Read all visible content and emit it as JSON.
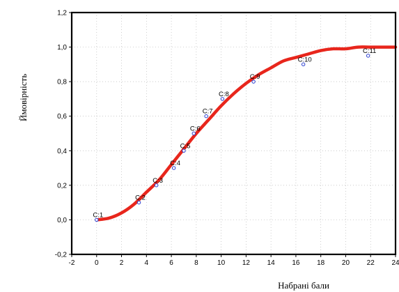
{
  "chart_data": {
    "type": "scatter",
    "title": "",
    "xlabel": "Набрані бали",
    "ylabel": "Ймовірність",
    "xlim": [
      -2,
      24
    ],
    "ylim": [
      -0.2,
      1.2
    ],
    "x_ticks": [
      "-2",
      "0",
      "2",
      "4",
      "6",
      "8",
      "10",
      "12",
      "14",
      "16",
      "18",
      "20",
      "22",
      "24"
    ],
    "y_ticks": [
      "-0,2",
      "0,0",
      "0,2",
      "0,4",
      "0,6",
      "0,8",
      "1,0",
      "1,2"
    ],
    "grid": true,
    "legend": "none",
    "series": [
      {
        "type": "scatter",
        "color": "#2b3fd0",
        "marker": "open-circle",
        "points": [
          {
            "label": "C:1",
            "x": 0.0,
            "y": 0.0
          },
          {
            "label": "C:2",
            "x": 3.4,
            "y": 0.1
          },
          {
            "label": "C:3",
            "x": 4.8,
            "y": 0.2
          },
          {
            "label": "C:4",
            "x": 6.2,
            "y": 0.3
          },
          {
            "label": "C:5",
            "x": 7.0,
            "y": 0.4
          },
          {
            "label": "C:6",
            "x": 7.8,
            "y": 0.5
          },
          {
            "label": "C:7",
            "x": 8.8,
            "y": 0.6
          },
          {
            "label": "C:8",
            "x": 10.1,
            "y": 0.7
          },
          {
            "label": "C:9",
            "x": 12.6,
            "y": 0.8
          },
          {
            "label": "C:10",
            "x": 16.6,
            "y": 0.9
          },
          {
            "label": "C:11",
            "x": 21.8,
            "y": 0.95
          }
        ]
      },
      {
        "type": "line",
        "color": "#e8261c",
        "x": [
          0,
          1,
          2,
          3,
          4,
          5,
          6,
          7,
          8,
          9,
          10,
          11,
          12,
          13,
          14,
          15,
          16,
          17,
          18,
          19,
          20,
          21,
          22,
          23,
          24
        ],
        "y": [
          0.0,
          0.01,
          0.04,
          0.09,
          0.16,
          0.23,
          0.32,
          0.41,
          0.5,
          0.58,
          0.66,
          0.73,
          0.79,
          0.84,
          0.88,
          0.92,
          0.94,
          0.96,
          0.98,
          0.99,
          0.99,
          1.0,
          1.0,
          1.0,
          1.0
        ]
      }
    ]
  }
}
